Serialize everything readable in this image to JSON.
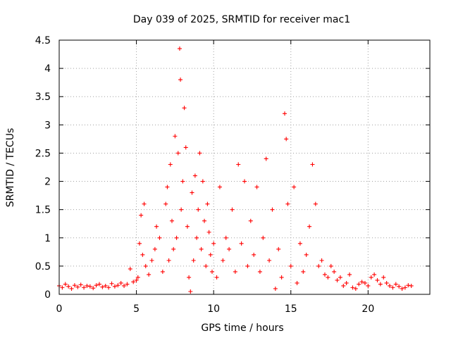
{
  "chart_data": {
    "type": "scatter",
    "title": "Day 039 of 2025, SRMTID for receiver mac1",
    "xlabel": "GPS time / hours",
    "ylabel": "SRMTID / TECUs",
    "xlim": [
      0,
      24
    ],
    "ylim": [
      0,
      4.5
    ],
    "xticks": [
      0,
      5,
      10,
      15,
      20
    ],
    "yticks": [
      0,
      0.5,
      1,
      1.5,
      2,
      2.5,
      3,
      3.5,
      4,
      4.5
    ],
    "xtick_labels": [
      "0",
      "5",
      "10",
      "15",
      "20"
    ],
    "ytick_labels": [
      "0",
      "0.5",
      "1",
      "1.5",
      "2",
      "2.5",
      "3",
      "3.5",
      "4",
      "4.5"
    ],
    "grid": true,
    "marker": "+",
    "marker_color": "#ff0000",
    "series": [
      {
        "name": "SRMTID",
        "x": [
          0.0,
          0.2,
          0.4,
          0.6,
          0.8,
          1.0,
          1.2,
          1.4,
          1.6,
          1.8,
          2.0,
          2.2,
          2.4,
          2.6,
          2.8,
          3.0,
          3.2,
          3.4,
          3.6,
          3.8,
          4.0,
          4.2,
          4.4,
          4.6,
          4.8,
          5.0,
          5.1,
          5.2,
          5.3,
          5.4,
          5.5,
          5.6,
          5.8,
          6.0,
          6.2,
          6.3,
          6.5,
          6.7,
          6.9,
          7.0,
          7.1,
          7.2,
          7.3,
          7.4,
          7.5,
          7.6,
          7.7,
          7.8,
          7.85,
          7.9,
          8.0,
          8.1,
          8.2,
          8.3,
          8.4,
          8.5,
          8.6,
          8.7,
          8.8,
          8.9,
          9.0,
          9.1,
          9.2,
          9.3,
          9.4,
          9.5,
          9.6,
          9.7,
          9.8,
          9.9,
          10.0,
          10.2,
          10.4,
          10.6,
          10.8,
          11.0,
          11.2,
          11.4,
          11.6,
          11.8,
          12.0,
          12.2,
          12.4,
          12.6,
          12.8,
          13.0,
          13.2,
          13.4,
          13.6,
          13.8,
          14.0,
          14.2,
          14.4,
          14.6,
          14.7,
          14.8,
          15.0,
          15.2,
          15.4,
          15.6,
          15.8,
          16.0,
          16.2,
          16.4,
          16.6,
          16.8,
          17.0,
          17.2,
          17.4,
          17.6,
          17.8,
          18.0,
          18.2,
          18.4,
          18.6,
          18.8,
          19.0,
          19.2,
          19.4,
          19.6,
          19.8,
          20.0,
          20.2,
          20.4,
          20.6,
          20.8,
          21.0,
          21.2,
          21.4,
          21.6,
          21.8,
          22.0,
          22.2,
          22.4,
          22.6,
          22.8
        ],
        "y": [
          0.15,
          0.12,
          0.18,
          0.14,
          0.1,
          0.16,
          0.13,
          0.17,
          0.12,
          0.15,
          0.14,
          0.11,
          0.16,
          0.18,
          0.13,
          0.15,
          0.12,
          0.19,
          0.14,
          0.16,
          0.2,
          0.15,
          0.18,
          0.45,
          0.22,
          0.25,
          0.3,
          0.9,
          1.4,
          0.7,
          1.6,
          0.5,
          0.35,
          0.6,
          0.8,
          1.2,
          1.0,
          0.4,
          1.6,
          1.9,
          0.6,
          2.3,
          1.3,
          0.8,
          2.8,
          1.0,
          2.5,
          4.35,
          3.8,
          1.5,
          2.0,
          3.3,
          2.6,
          1.2,
          0.3,
          0.05,
          1.8,
          0.6,
          2.1,
          1.0,
          1.5,
          2.5,
          0.8,
          2.0,
          1.3,
          0.5,
          1.6,
          1.1,
          0.7,
          0.4,
          0.9,
          0.3,
          1.9,
          0.6,
          1.0,
          0.8,
          1.5,
          0.4,
          2.3,
          0.9,
          2.0,
          0.5,
          1.3,
          0.7,
          1.9,
          0.4,
          1.0,
          2.4,
          0.6,
          1.5,
          0.1,
          0.8,
          0.3,
          3.2,
          2.75,
          1.6,
          0.5,
          1.9,
          0.2,
          0.9,
          0.4,
          0.7,
          1.2,
          2.3,
          1.6,
          0.5,
          0.6,
          0.35,
          0.3,
          0.5,
          0.4,
          0.25,
          0.3,
          0.15,
          0.2,
          0.35,
          0.12,
          0.1,
          0.18,
          0.22,
          0.2,
          0.15,
          0.3,
          0.35,
          0.25,
          0.18,
          0.3,
          0.2,
          0.15,
          0.12,
          0.18,
          0.14,
          0.1,
          0.12,
          0.16,
          0.15
        ]
      }
    ]
  }
}
